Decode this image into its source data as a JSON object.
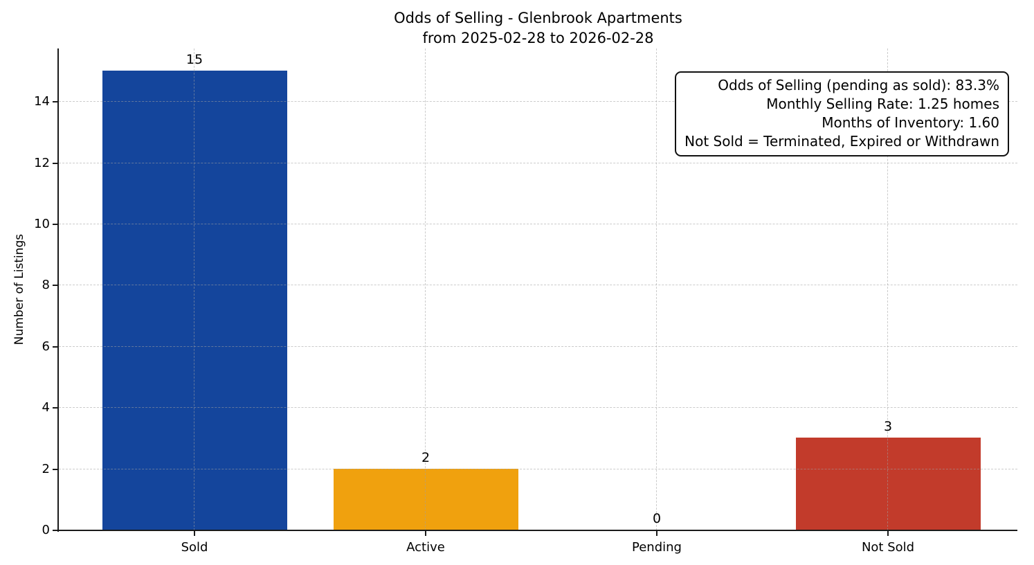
{
  "chart_data": {
    "type": "bar",
    "title": "Odds of Selling - Glenbrook Apartments",
    "subtitle": "from 2025-02-28 to 2026-02-28",
    "categories": [
      "Sold",
      "Active",
      "Pending",
      "Not Sold"
    ],
    "values": [
      15,
      2,
      0,
      3
    ],
    "bar_colors": [
      "#14459C",
      "#F0A10E",
      "#9A9A9A",
      "#C23B2B"
    ],
    "value_labels": [
      "15",
      "2",
      "0",
      "3"
    ],
    "ylabel": "Number of Listings",
    "xlabel": "",
    "yticks": [
      0,
      2,
      4,
      6,
      8,
      10,
      12,
      14
    ],
    "ylim": [
      0,
      15.75
    ],
    "grid": "dashed, horizontal and vertical, drawn over bars",
    "legend": "none",
    "colors": {
      "sold_bar": "#14459C",
      "active_bar": "#F0A10E",
      "not_sold_bar": "#C23B2B",
      "axis": "#1a1a1a",
      "grid": "#c8c8c8",
      "text": "#000000",
      "background": "#ffffff"
    },
    "annotation_box": {
      "lines": [
        "Odds of Selling (pending as sold): 83.3%",
        "Monthly Selling Rate: 1.25 homes",
        "Months of Inventory: 1.60",
        "Not Sold = Terminated, Expired or Withdrawn"
      ],
      "odds_of_selling_pct": 83.3,
      "monthly_selling_rate_homes": 1.25,
      "months_of_inventory": 1.6
    }
  }
}
